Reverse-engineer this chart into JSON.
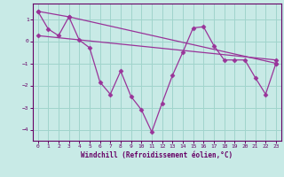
{
  "xlabel": "Windchill (Refroidissement éolien,°C)",
  "background_color": "#c8eae6",
  "grid_color": "#a0d4cc",
  "line_color": "#993399",
  "spine_color": "#660066",
  "xlim": [
    -0.5,
    23.5
  ],
  "ylim": [
    -4.5,
    1.7
  ],
  "xticks": [
    0,
    1,
    2,
    3,
    4,
    5,
    6,
    7,
    8,
    9,
    10,
    11,
    12,
    13,
    14,
    15,
    16,
    17,
    18,
    19,
    20,
    21,
    22,
    23
  ],
  "yticks": [
    -4,
    -3,
    -2,
    -1,
    0,
    1
  ],
  "series1": {
    "x": [
      0,
      1,
      2,
      3,
      4,
      5,
      6,
      7,
      8,
      9,
      10,
      11,
      12,
      13,
      14,
      15,
      16,
      17,
      18,
      19,
      20,
      21,
      22,
      23
    ],
    "y": [
      1.35,
      0.55,
      0.25,
      1.1,
      0.05,
      -0.3,
      -1.85,
      -2.4,
      -1.35,
      -2.5,
      -3.1,
      -4.1,
      -2.8,
      -1.55,
      -0.5,
      0.6,
      0.65,
      -0.2,
      -0.85,
      -0.85,
      -0.85,
      -1.65,
      -2.4,
      -1.0
    ]
  },
  "series2": {
    "x": [
      0,
      3,
      23
    ],
    "y": [
      1.35,
      1.1,
      -1.0
    ]
  },
  "series3": {
    "x": [
      0,
      23
    ],
    "y": [
      0.25,
      -0.85
    ]
  }
}
